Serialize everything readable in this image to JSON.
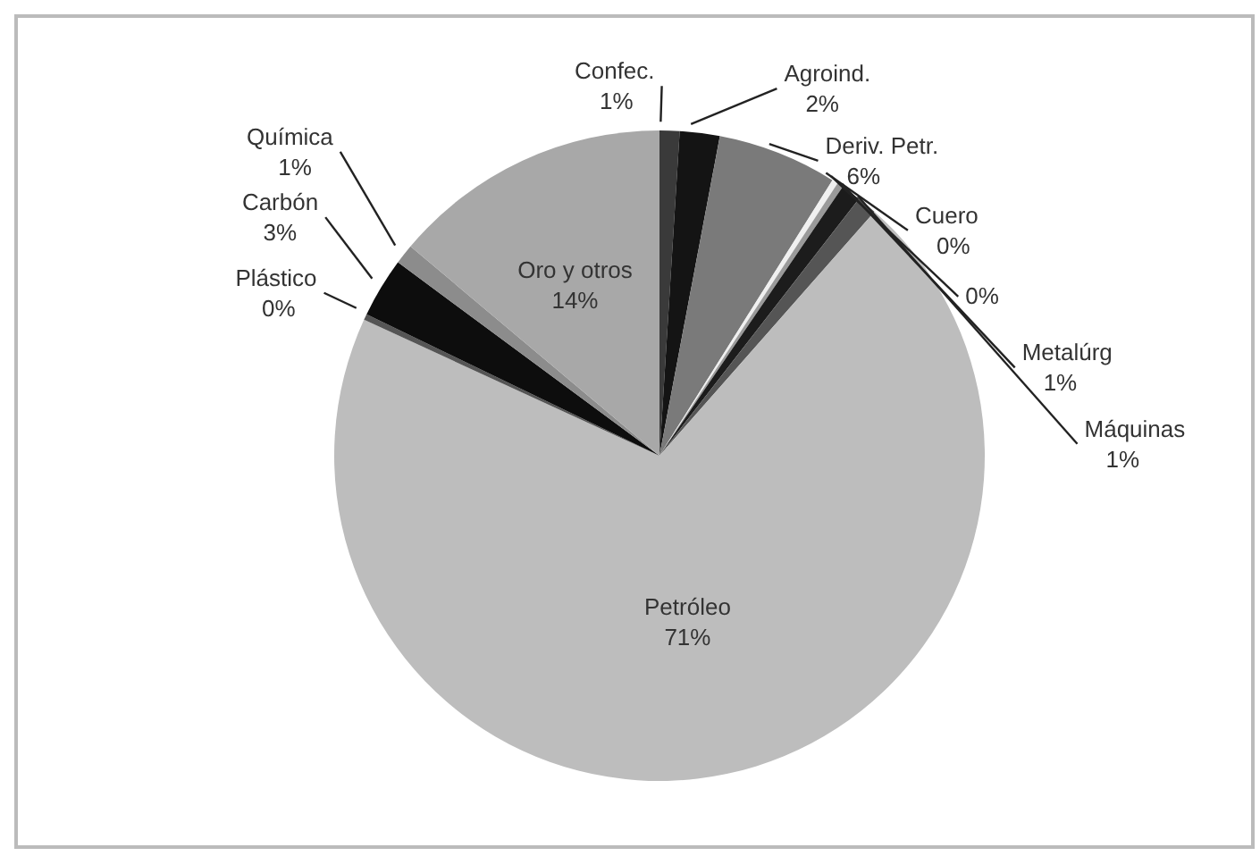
{
  "chart_data": {
    "type": "pie",
    "categories": [
      "Confec.",
      "Agroind.",
      "Deriv. Petr.",
      "Cuero",
      null,
      "Metalúrg",
      "Máquinas",
      "Petróleo",
      "Plástico",
      "Carbón",
      "Química",
      "Oro y otros"
    ],
    "values": [
      1,
      2,
      6,
      0.3,
      0.3,
      1,
      1,
      71,
      0.3,
      3,
      1,
      14
    ],
    "value_labels": [
      "1%",
      "2%",
      "6%",
      "0%",
      "0%",
      "1%",
      "1%",
      "71%",
      "0%",
      "3%",
      "1%",
      "14%"
    ],
    "colors": [
      "#3a3a3a",
      "#141414",
      "#7a7a7a",
      "#f0f0f0",
      "#9a9a9a",
      "#1c1c1c",
      "#555555",
      "#bdbdbd",
      "#555555",
      "#0d0d0d",
      "#8c8c8c",
      "#a8a8a8"
    ],
    "legend": false
  }
}
